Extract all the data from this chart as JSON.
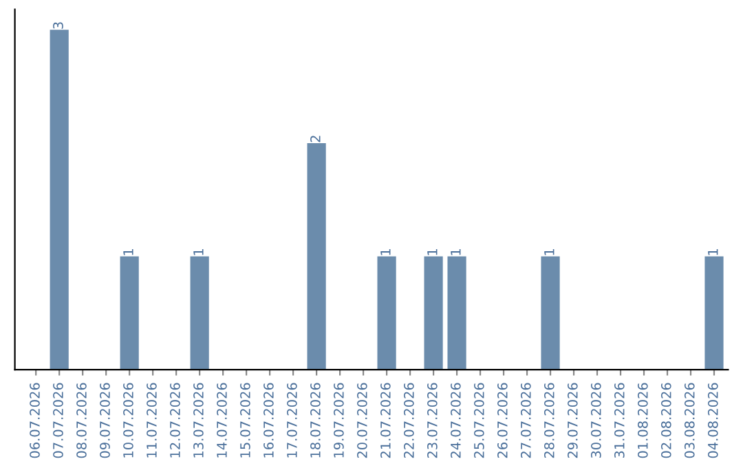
{
  "chart_data": {
    "type": "bar",
    "categories": [
      "06.07.2026",
      "07.07.2026",
      "08.07.2026",
      "09.07.2026",
      "10.07.2026",
      "11.07.2026",
      "12.07.2026",
      "13.07.2026",
      "14.07.2026",
      "15.07.2026",
      "16.07.2026",
      "17.07.2026",
      "18.07.2026",
      "19.07.2026",
      "20.07.2026",
      "21.07.2026",
      "22.07.2026",
      "23.07.2026",
      "24.07.2026",
      "25.07.2026",
      "26.07.2026",
      "27.07.2026",
      "28.07.2026",
      "29.07.2026",
      "30.07.2026",
      "31.07.2026",
      "01.08.2026",
      "02.08.2026",
      "03.08.2026",
      "04.08.2026"
    ],
    "values": [
      0,
      3,
      0,
      0,
      1,
      0,
      0,
      1,
      0,
      0,
      0,
      0,
      2,
      0,
      0,
      1,
      0,
      1,
      1,
      0,
      0,
      0,
      1,
      0,
      0,
      0,
      0,
      0,
      0,
      1
    ],
    "value_labels": [
      null,
      "3",
      null,
      null,
      "1",
      null,
      null,
      "1",
      null,
      null,
      null,
      null,
      "2",
      null,
      null,
      "1",
      null,
      "1",
      "1",
      null,
      null,
      null,
      "1",
      null,
      null,
      null,
      null,
      null,
      null,
      "1"
    ],
    "color": "#6b8cac",
    "tick_labels": "x",
    "grid": false,
    "legend": false
  }
}
